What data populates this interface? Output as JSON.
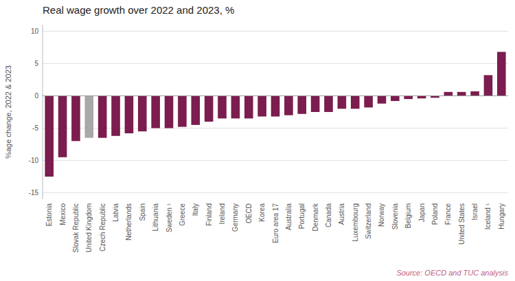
{
  "chart_data": {
    "type": "bar",
    "title": "Real wage growth over 2022 and 2023, %",
    "ylabel": "%age change, 2022 & 2023",
    "source": "Source: OECD and TUC analysis",
    "categories": [
      "Estonia",
      "Mexico",
      "Slovak Republic",
      "United Kingdom",
      "Czech Republic",
      "Latvia",
      "Netherlands",
      "Spain",
      "Lithuania",
      "Sweden ¹",
      "Greece",
      "Italy",
      "Finland",
      "Ireland",
      "Germany",
      "OECD",
      "Korea",
      "Euro area 17",
      "Australia",
      "Portugal",
      "Denmark",
      "Canada",
      "Austria",
      "Luxembourg",
      "Switzerland",
      "Norway",
      "Slovenia",
      "Belgium",
      "Japan",
      "Poland",
      "France",
      "United States",
      "Israel",
      "Iceland ¹",
      "Hungary"
    ],
    "values": [
      -12.5,
      -9.5,
      -7.0,
      -6.5,
      -6.5,
      -6.2,
      -5.8,
      -5.5,
      -5.0,
      -5.0,
      -4.8,
      -4.5,
      -4.0,
      -3.5,
      -3.5,
      -3.5,
      -3.2,
      -3.2,
      -3.0,
      -2.8,
      -2.5,
      -2.5,
      -2.0,
      -2.0,
      -1.8,
      -1.2,
      -0.8,
      -0.5,
      -0.4,
      -0.3,
      0.6,
      0.6,
      0.7,
      3.2,
      6.8
    ],
    "colors": [
      "#7b1d4e",
      "#7b1d4e",
      "#7b1d4e",
      "#a8a8a8",
      "#7b1d4e",
      "#7b1d4e",
      "#7b1d4e",
      "#7b1d4e",
      "#7b1d4e",
      "#7b1d4e",
      "#7b1d4e",
      "#7b1d4e",
      "#7b1d4e",
      "#7b1d4e",
      "#7b1d4e",
      "#7b1d4e",
      "#7b1d4e",
      "#7b1d4e",
      "#7b1d4e",
      "#7b1d4e",
      "#7b1d4e",
      "#7b1d4e",
      "#7b1d4e",
      "#7b1d4e",
      "#7b1d4e",
      "#7b1d4e",
      "#7b1d4e",
      "#7b1d4e",
      "#7b1d4e",
      "#7b1d4e",
      "#7b1d4e",
      "#7b1d4e",
      "#7b1d4e",
      "#7b1d4e",
      "#7b1d4e"
    ],
    "ylim": [
      -16,
      11
    ],
    "yticks": [
      -15,
      -10,
      -5,
      0,
      5,
      10
    ],
    "grid": true
  }
}
